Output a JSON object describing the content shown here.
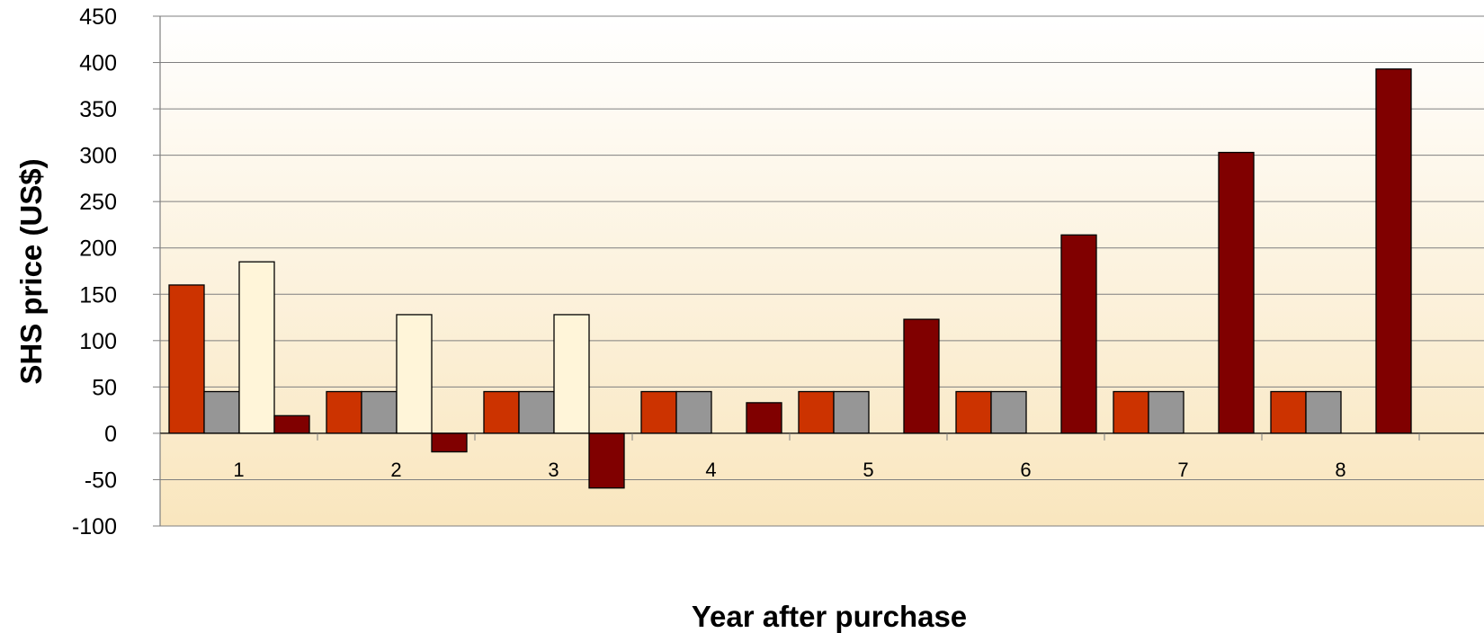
{
  "chart_data": {
    "type": "bar",
    "xlabel": "Year after purchase",
    "ylabel": "SHS price (US$)",
    "ylim": [
      -100,
      450
    ],
    "yticks": [
      -100,
      -50,
      0,
      50,
      100,
      150,
      200,
      250,
      300,
      350,
      400,
      450
    ],
    "grid": true,
    "legend": "none",
    "categories": [
      "1",
      "2",
      "3",
      "4",
      "5",
      "6",
      "7",
      "8"
    ],
    "series": [
      {
        "color": "#CC3300",
        "values": [
          160,
          45,
          45,
          45,
          45,
          45,
          45,
          45
        ]
      },
      {
        "color": "#969696",
        "values": [
          45,
          45,
          45,
          45,
          45,
          45,
          45,
          45
        ]
      },
      {
        "color": "#FFF5D9",
        "values": [
          185,
          128,
          128,
          null,
          null,
          null,
          null,
          null
        ]
      },
      {
        "color": "#800000",
        "values": [
          19,
          -20,
          -59,
          33,
          123,
          214,
          303,
          393
        ]
      }
    ],
    "plot_background": [
      "#FFFFFF",
      "#F9E6BE"
    ]
  }
}
